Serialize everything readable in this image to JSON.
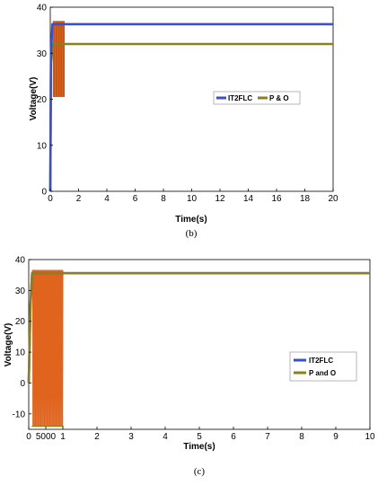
{
  "chart_data": [
    {
      "type": "line",
      "panel_label": "(b)",
      "xlabel": "Time(s)",
      "ylabel": "Voltage(V)",
      "xlim": [
        0,
        20
      ],
      "ylim": [
        0,
        40
      ],
      "xticks": [
        "0",
        "2",
        "4",
        "6",
        "8",
        "10",
        "12",
        "14",
        "16",
        "18",
        "20"
      ],
      "yticks": [
        "0",
        "10",
        "20",
        "30",
        "40"
      ],
      "grid": false,
      "legend_position": "center-right",
      "series": [
        {
          "name": "IT2FLC",
          "color": "#3a50c8",
          "x": [
            0,
            0.05,
            0.15,
            20
          ],
          "y": [
            0,
            30,
            36.3,
            36.3
          ]
        },
        {
          "name": "P & O",
          "color": "#8c7f1e",
          "x": [
            0,
            0.05,
            0.2,
            1.0,
            1.0,
            20
          ],
          "y": [
            0,
            28,
            32,
            32,
            32,
            32
          ],
          "oscillation": {
            "x_range": [
              0.2,
              1.0
            ],
            "y_range": [
              20.5,
              37
            ],
            "color": "#e0641e"
          }
        }
      ]
    },
    {
      "type": "line",
      "panel_label": "(c)",
      "xlabel": "Time(s)",
      "ylabel": "Voltage(V)",
      "xlim": [
        0,
        10
      ],
      "ylim": [
        -15,
        40
      ],
      "xticks": [
        "0",
        "5000",
        "1",
        "2",
        "3",
        "4",
        "5",
        "6",
        "7",
        "8",
        "9",
        "10"
      ],
      "yticks": [
        "-10",
        "0",
        "10",
        "20",
        "30",
        "40"
      ],
      "grid": false,
      "legend_position": "center-right",
      "series": [
        {
          "name": "IT2FLC",
          "color": "#3a50c8",
          "x": [
            0,
            0.05,
            0.1,
            10
          ],
          "y": [
            0,
            25,
            35.6,
            35.6
          ]
        },
        {
          "name": "P and O",
          "color": "#8c7f1e",
          "x": [
            0,
            0.05,
            0.1,
            1.0,
            10
          ],
          "y": [
            0,
            25,
            35.6,
            35.6,
            35.6
          ],
          "oscillation": {
            "x_range": [
              0.1,
              1.0
            ],
            "y_range": [
              -14,
              36.5
            ],
            "cycles": 24,
            "color": "#e0641e"
          }
        }
      ]
    }
  ]
}
